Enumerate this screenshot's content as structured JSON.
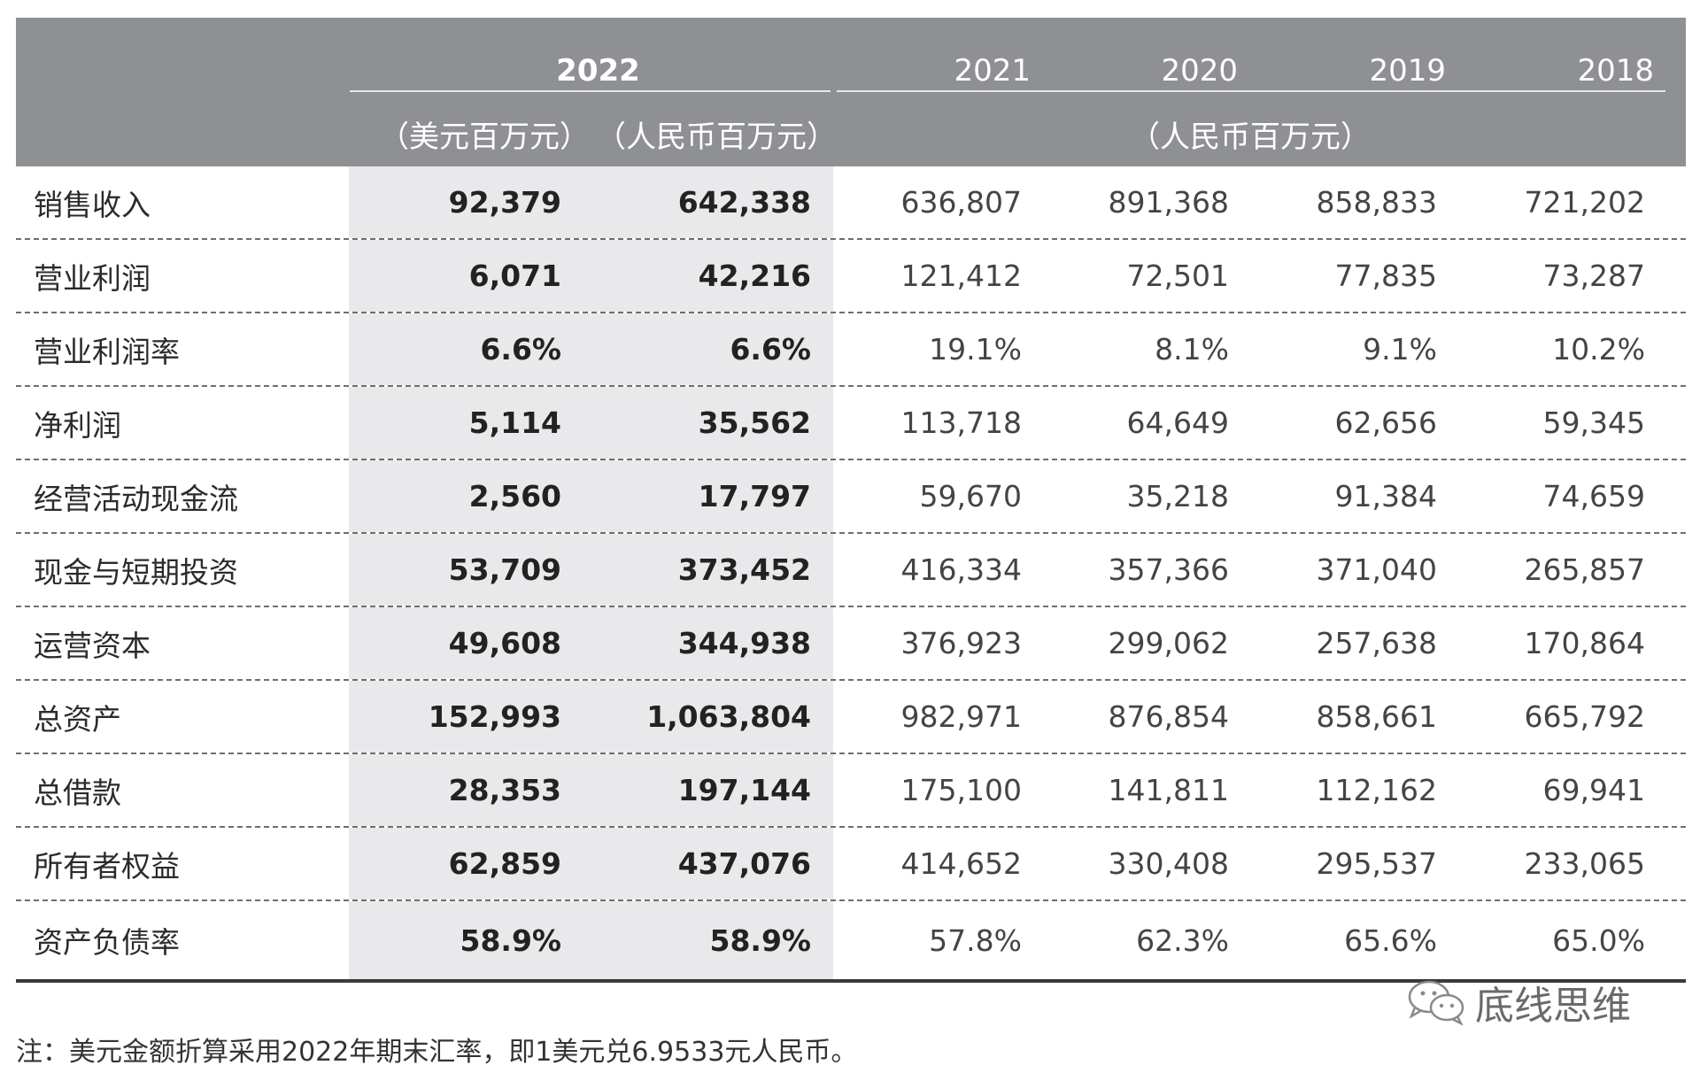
{
  "header": {
    "year_2022": "2022",
    "years": [
      "2021",
      "2020",
      "2019",
      "2018"
    ],
    "unit_usd": "（美元百万元）",
    "unit_rmb": "（人民币百万元）",
    "unit_hist": "（人民币百万元）"
  },
  "rows": [
    {
      "label": "销售收入",
      "usd_2022": "92,379",
      "rmb_2022": "642,338",
      "y2021": "636,807",
      "y2020": "891,368",
      "y2019": "858,833",
      "y2018": "721,202"
    },
    {
      "label": "营业利润",
      "usd_2022": "6,071",
      "rmb_2022": "42,216",
      "y2021": "121,412",
      "y2020": "72,501",
      "y2019": "77,835",
      "y2018": "73,287"
    },
    {
      "label": "营业利润率",
      "usd_2022": "6.6%",
      "rmb_2022": "6.6%",
      "y2021": "19.1%",
      "y2020": "8.1%",
      "y2019": "9.1%",
      "y2018": "10.2%"
    },
    {
      "label": "净利润",
      "usd_2022": "5,114",
      "rmb_2022": "35,562",
      "y2021": "113,718",
      "y2020": "64,649",
      "y2019": "62,656",
      "y2018": "59,345"
    },
    {
      "label": "经营活动现金流",
      "usd_2022": "2,560",
      "rmb_2022": "17,797",
      "y2021": "59,670",
      "y2020": "35,218",
      "y2019": "91,384",
      "y2018": "74,659"
    },
    {
      "label": "现金与短期投资",
      "usd_2022": "53,709",
      "rmb_2022": "373,452",
      "y2021": "416,334",
      "y2020": "357,366",
      "y2019": "371,040",
      "y2018": "265,857"
    },
    {
      "label": "运营资本",
      "usd_2022": "49,608",
      "rmb_2022": "344,938",
      "y2021": "376,923",
      "y2020": "299,062",
      "y2019": "257,638",
      "y2018": "170,864"
    },
    {
      "label": "总资产",
      "usd_2022": "152,993",
      "rmb_2022": "1,063,804",
      "y2021": "982,971",
      "y2020": "876,854",
      "y2019": "858,661",
      "y2018": "665,792"
    },
    {
      "label": "总借款",
      "usd_2022": "28,353",
      "rmb_2022": "197,144",
      "y2021": "175,100",
      "y2020": "141,811",
      "y2019": "112,162",
      "y2018": "69,941"
    },
    {
      "label": "所有者权益",
      "usd_2022": "62,859",
      "rmb_2022": "437,076",
      "y2021": "414,652",
      "y2020": "330,408",
      "y2019": "295,537",
      "y2018": "233,065"
    },
    {
      "label": "资产负债率",
      "usd_2022": "58.9%",
      "rmb_2022": "58.9%",
      "y2021": "57.8%",
      "y2020": "62.3%",
      "y2019": "65.6%",
      "y2018": "65.0%"
    }
  ],
  "watermark": {
    "text": "底线思维",
    "icon": "wechat-icon"
  },
  "note": "注：美元金额折算采用2022年期末汇率，即1美元兑6.9533元人民币。"
}
